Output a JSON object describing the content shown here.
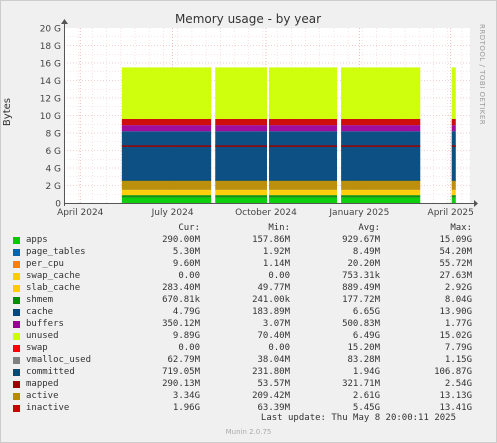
{
  "chart_data": {
    "type": "area",
    "title": "Memory usage - by year",
    "ylabel": "Bytes",
    "ylim": [
      0,
      20
    ],
    "y_unit": "G",
    "y_ticks": [
      "0",
      "2 G",
      "4 G",
      "6 G",
      "8 G",
      "10 G",
      "12 G",
      "14 G",
      "16 G",
      "18 G",
      "20 G"
    ],
    "x_ticks": [
      "April 2024",
      "July 2024",
      "October 2024",
      "January 2025",
      "April 2025"
    ],
    "x_range": [
      "2024-03-16",
      "2025-04-20"
    ],
    "x_tick_dates": [
      "2024-04-01",
      "2024-07-01",
      "2024-10-01",
      "2025-01-01",
      "2025-04-01"
    ],
    "grid": true,
    "legend_columns": [
      "Cur:",
      "Min:",
      "Avg:",
      "Max:"
    ],
    "series": [
      {
        "name": "apps",
        "color": "#00cc00",
        "cur": "290.00M",
        "min": "157.86M",
        "avg": "929.67M",
        "max": "15.09G"
      },
      {
        "name": "page_tables",
        "color": "#0066b3",
        "cur": "5.30M",
        "min": "1.92M",
        "avg": "8.49M",
        "max": "54.20M"
      },
      {
        "name": "per_cpu",
        "color": "#ff8000",
        "cur": "9.60M",
        "min": "1.14M",
        "avg": "20.20M",
        "max": "55.72M"
      },
      {
        "name": "swap_cache",
        "color": "#ffcc00",
        "cur": "0.00",
        "min": "0.00",
        "avg": "753.31k",
        "max": "27.63M"
      },
      {
        "name": "slab_cache",
        "color": "#ffcc00",
        "cur": "283.40M",
        "min": "49.77M",
        "avg": "889.49M",
        "max": "2.92G"
      },
      {
        "name": "shmem",
        "color": "#008f00",
        "cur": "670.81k",
        "min": "241.00k",
        "avg": "177.72M",
        "max": "8.04G"
      },
      {
        "name": "cache",
        "color": "#00487d",
        "cur": "4.79G",
        "min": "183.89M",
        "avg": "6.65G",
        "max": "13.90G"
      },
      {
        "name": "buffers",
        "color": "#990099",
        "cur": "350.12M",
        "min": "3.07M",
        "avg": "500.83M",
        "max": "1.77G"
      },
      {
        "name": "unused",
        "color": "#ccff00",
        "cur": "9.89G",
        "min": "70.40M",
        "avg": "6.49G",
        "max": "15.02G"
      },
      {
        "name": "swap",
        "color": "#ff0000",
        "cur": "0.00",
        "min": "0.00",
        "avg": "15.20M",
        "max": "7.79G"
      },
      {
        "name": "vmalloc_used",
        "color": "#808080",
        "cur": "62.79M",
        "min": "38.04M",
        "avg": "83.28M",
        "max": "1.15G"
      },
      {
        "name": "committed",
        "color": "#004b7a",
        "cur": "719.05M",
        "min": "231.80M",
        "avg": "1.94G",
        "max": "106.87G"
      },
      {
        "name": "mapped",
        "color": "#a00000",
        "cur": "290.13M",
        "min": "53.57M",
        "avg": "321.71M",
        "max": "2.54G"
      },
      {
        "name": "active",
        "color": "#b88a00",
        "cur": "3.34G",
        "min": "209.42M",
        "avg": "2.61G",
        "max": "13.13G"
      },
      {
        "name": "inactive",
        "color": "#cc0000",
        "cur": "1.96G",
        "min": "63.39M",
        "avg": "5.45G",
        "max": "13.41G"
      }
    ]
  },
  "footer": {
    "last_update": "Last update:  Thu May  8 20:00:11 2025",
    "version": "Munin 2.0.75",
    "side_label": "RRDTOOL / TOBI OETIKER"
  }
}
